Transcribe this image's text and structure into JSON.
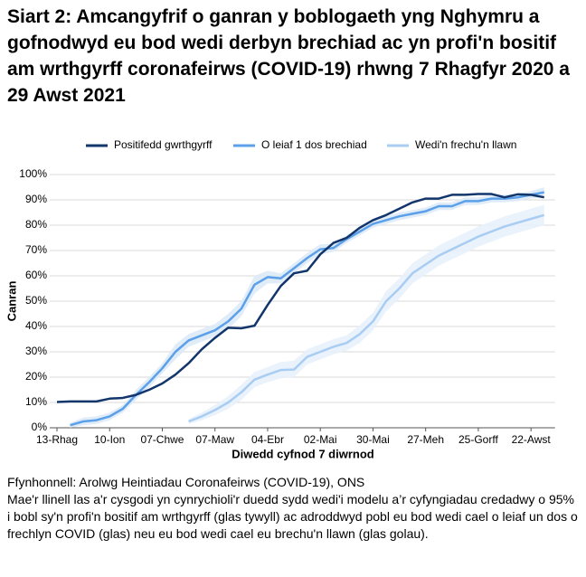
{
  "chart_data": {
    "type": "line",
    "title": "Siart 2: Amcangyfrif o ganran y boblogaeth yng Nghymru a gofnodwyd eu bod wedi derbyn brechiad ac yn profi'n bositif am wrthgyrff coronafeirws (COVID-19) rhwng 7 Rhagfyr 2020 a 29 Awst 2021",
    "source": "Ffynhonnell: Arolwg Heintiadau Coronafeirws (COVID-19), ONS",
    "note": "Mae'r llinell las a'r cysgodi yn cynrychioli'r duedd sydd wedi'i modelu a’r cyfyngiadau credadwy o 95% i bobl sy'n profi'n bositif am wrthgyrff (glas tywyll) ac adroddwyd pobl eu bod wedi cael o leiaf un dos o frechlyn COVID (glas) neu eu bod wedi cael eu brechu'n llawn (glas golau).",
    "x_label": "Diwedd cyfnod 7 diwrnod",
    "y_label": "Canran",
    "categories": [
      "13-Rhag",
      null,
      null,
      null,
      "10-Ion",
      null,
      null,
      null,
      "07-Chwe",
      null,
      null,
      null,
      "07-Maw",
      null,
      null,
      null,
      "04-Ebr",
      null,
      null,
      null,
      "02-Mai",
      null,
      null,
      null,
      "30-Mai",
      null,
      null,
      null,
      "27-Meh",
      null,
      null,
      null,
      "25-Gorff",
      null,
      null,
      null,
      "22-Awst",
      null
    ],
    "ylim": [
      0,
      100
    ],
    "yticks": [
      {
        "value": 0,
        "label": "0%"
      },
      {
        "value": 10,
        "label": "10%"
      },
      {
        "value": 20,
        "label": "20%"
      },
      {
        "value": 30,
        "label": "30%"
      },
      {
        "value": 40,
        "label": "40%"
      },
      {
        "value": 50,
        "label": "50%"
      },
      {
        "value": 60,
        "label": "60%"
      },
      {
        "value": 70,
        "label": "70%"
      },
      {
        "value": 80,
        "label": "80%"
      },
      {
        "value": 90,
        "label": "90%"
      },
      {
        "value": 100,
        "label": "100%"
      }
    ],
    "grid": true,
    "legend": "top",
    "series": [
      {
        "name": "Positifedd gwrthgyrff",
        "color": "#12366b",
        "values": [
          10.2,
          10.4,
          10.4,
          10.4,
          11.5,
          11.8,
          13,
          15,
          17.5,
          21,
          25.5,
          31,
          35.5,
          39.5,
          39.3,
          40.3,
          48.5,
          56,
          61,
          62,
          68.5,
          73,
          75,
          79,
          82,
          84,
          86.5,
          89,
          90.5,
          90.5,
          92,
          92,
          92.3,
          92.3,
          91,
          92.2,
          92,
          91
        ]
      },
      {
        "name": "O leiaf 1 dos brechiad",
        "color": "#5ba0e8",
        "band_color": "#dce9f8",
        "values": [
          null,
          1,
          2.5,
          3,
          4.5,
          7.5,
          13,
          18,
          23.5,
          30,
          34.5,
          36.5,
          38.5,
          42,
          47,
          56.5,
          59.5,
          59,
          63,
          67,
          70.5,
          71,
          74.5,
          77.5,
          80.5,
          82,
          83.5,
          84.5,
          85.5,
          87.5,
          87.5,
          89.5,
          89.5,
          90.5,
          90.5,
          91,
          92,
          93
        ],
        "lower": [
          null,
          0,
          1,
          1.5,
          3,
          6,
          11,
          16,
          21.5,
          27,
          32,
          34,
          36,
          39,
          44,
          53,
          57,
          57,
          61,
          65,
          68.5,
          69.5,
          73,
          76,
          79,
          80.5,
          82,
          83,
          84,
          86,
          86,
          88,
          88,
          89,
          89,
          89.5,
          90.5,
          91
        ],
        "upper": [
          null,
          2,
          4,
          4.5,
          6,
          9,
          15,
          20,
          25.5,
          33,
          37,
          39,
          41,
          45,
          50,
          60,
          62,
          61,
          65,
          69,
          72.5,
          72.5,
          76,
          79,
          82,
          83.5,
          85,
          86,
          87,
          89,
          89,
          91,
          91,
          92,
          92,
          92.5,
          93.5,
          95
        ]
      },
      {
        "name": "Wedi'n frechu'n llawn",
        "color": "#a9cdf2",
        "band_color": "#e6f0fb",
        "values": [
          null,
          null,
          null,
          null,
          null,
          null,
          null,
          null,
          null,
          null,
          2.5,
          4.5,
          7,
          10,
          14,
          19,
          21,
          22.8,
          23,
          28,
          30,
          32,
          33.5,
          37,
          42,
          50,
          55,
          61,
          64.5,
          68,
          70.5,
          73,
          75.5,
          77.5,
          79.5,
          81,
          82.5,
          84
        ],
        "lower": [
          null,
          null,
          null,
          null,
          null,
          null,
          null,
          null,
          null,
          null,
          1.5,
          3,
          5,
          7.5,
          11,
          16,
          18,
          19.5,
          20,
          25,
          27,
          29,
          30.5,
          33.5,
          38.5,
          46,
          51,
          57,
          60.5,
          64,
          66.5,
          69,
          71.5,
          73.5,
          75.5,
          77,
          78.5,
          80
        ],
        "upper": [
          null,
          null,
          null,
          null,
          null,
          null,
          null,
          null,
          null,
          null,
          3.5,
          6,
          9,
          12.5,
          17,
          22,
          24,
          26,
          26.5,
          31,
          33,
          35,
          36.5,
          40.5,
          45.5,
          54,
          59,
          65,
          68.5,
          72,
          74.5,
          77,
          79.5,
          81.5,
          83.5,
          85,
          86.5,
          88
        ]
      }
    ]
  }
}
